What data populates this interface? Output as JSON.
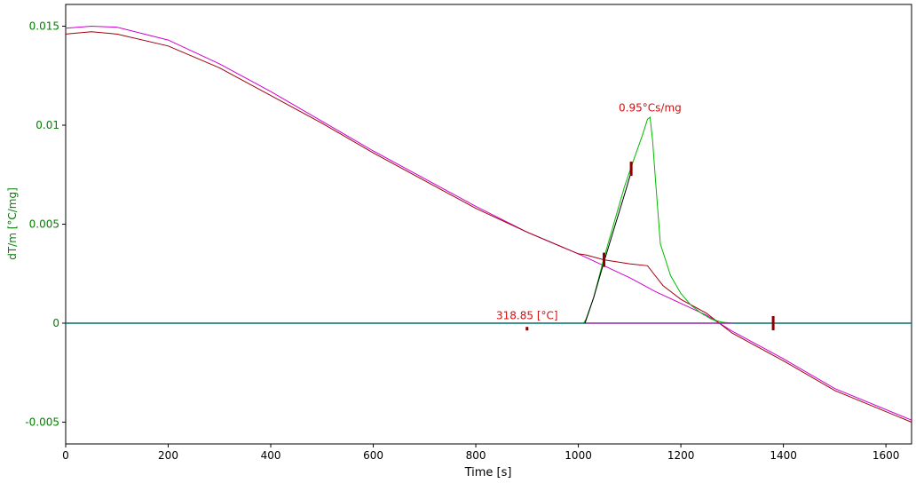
{
  "chart_data": {
    "type": "line",
    "xlabel": "Time [s]",
    "ylabel": "dT/m  [°C/mg]",
    "xlim": [
      0,
      1650
    ],
    "ylim": [
      -0.0061,
      0.0161
    ],
    "x_ticks": [
      0,
      200,
      400,
      600,
      800,
      1000,
      1200,
      1400,
      1600
    ],
    "x_tick_labels": [
      "0",
      "200",
      "400",
      "600",
      "800",
      "1000",
      "1200",
      "1400",
      "1600"
    ],
    "y_ticks": [
      0.015,
      0.01,
      0.005,
      0,
      -0.005
    ],
    "y_tick_labels": [
      "0.015",
      "0.01",
      "0.005",
      "0",
      "-0.005"
    ],
    "grid": false,
    "colors": {
      "green": "#00bb00",
      "dark_red": "#a00010",
      "magenta": "#d000d0",
      "teal": "#007070",
      "black": "#000000",
      "annotation": "#d01010",
      "marker": "#8b0000"
    },
    "series": [
      {
        "color": "#d000d0",
        "points": [
          [
            0,
            0.0149
          ],
          [
            50,
            0.015
          ],
          [
            100,
            0.01495
          ],
          [
            200,
            0.0143
          ],
          [
            300,
            0.0131
          ],
          [
            400,
            0.0117
          ],
          [
            500,
            0.0102
          ],
          [
            600,
            0.0087
          ],
          [
            700,
            0.0073
          ],
          [
            800,
            0.0059
          ],
          [
            900,
            0.0046
          ],
          [
            1000,
            0.0035
          ],
          [
            1050,
            0.0029
          ],
          [
            1100,
            0.0023
          ],
          [
            1150,
            0.0016
          ],
          [
            1200,
            0.001
          ],
          [
            1250,
            0.0004
          ],
          [
            1300,
            -0.0004
          ],
          [
            1400,
            -0.0018
          ],
          [
            1500,
            -0.0033
          ],
          [
            1650,
            -0.0049
          ]
        ]
      },
      {
        "color": "#a00010",
        "points": [
          [
            0,
            0.0146
          ],
          [
            50,
            0.01472
          ],
          [
            100,
            0.0146
          ],
          [
            200,
            0.014
          ],
          [
            300,
            0.0129
          ],
          [
            400,
            0.0115
          ],
          [
            500,
            0.0101
          ],
          [
            600,
            0.0086
          ],
          [
            700,
            0.0072
          ],
          [
            800,
            0.0058
          ],
          [
            900,
            0.0046
          ],
          [
            1000,
            0.0035
          ],
          [
            1015,
            0.00345
          ],
          [
            1050,
            0.0032
          ],
          [
            1100,
            0.003
          ],
          [
            1135,
            0.0029
          ],
          [
            1150,
            0.0024
          ],
          [
            1165,
            0.0019
          ],
          [
            1200,
            0.0012
          ],
          [
            1250,
            0.0005
          ],
          [
            1300,
            -0.0005
          ],
          [
            1400,
            -0.0019
          ],
          [
            1500,
            -0.0034
          ],
          [
            1650,
            -0.005
          ]
        ]
      },
      {
        "color": "#00bb00",
        "points": [
          [
            0,
            0
          ],
          [
            1010,
            0
          ],
          [
            1015,
            0.0002
          ],
          [
            1030,
            0.0013
          ],
          [
            1050,
            0.0033
          ],
          [
            1070,
            0.0051
          ],
          [
            1090,
            0.0069
          ],
          [
            1110,
            0.0084
          ],
          [
            1125,
            0.0095
          ],
          [
            1135,
            0.0103
          ],
          [
            1140,
            0.0104
          ],
          [
            1145,
            0.0092
          ],
          [
            1150,
            0.0074
          ],
          [
            1160,
            0.004
          ],
          [
            1170,
            0.0032
          ],
          [
            1180,
            0.0024
          ],
          [
            1200,
            0.0015
          ],
          [
            1220,
            0.0009
          ],
          [
            1240,
            0.0005
          ],
          [
            1260,
            0.0002
          ],
          [
            1280,
            5e-05
          ],
          [
            1300,
            0
          ],
          [
            1650,
            0
          ]
        ]
      },
      {
        "color": "#007070",
        "points": [
          [
            0,
            0
          ],
          [
            1650,
            0
          ]
        ]
      },
      {
        "color": "#000000",
        "points": [
          [
            1013,
            0
          ],
          [
            1030,
            0.0013
          ],
          [
            1050,
            0.0031
          ],
          [
            1070,
            0.0048
          ],
          [
            1090,
            0.0065
          ],
          [
            1105,
            0.0078
          ]
        ]
      },
      {
        "color": "#d000d0",
        "points": [
          [
            1015,
            0
          ],
          [
            1300,
            0
          ]
        ]
      }
    ],
    "markers": [
      {
        "x": 1050,
        "y": 0.0032
      },
      {
        "x": 1103,
        "y": 0.0078
      },
      {
        "x": 1380,
        "y": 0.0
      },
      {
        "x": 900,
        "y": -0.00028
      }
    ],
    "annotations": [
      {
        "text": "0.95°Cs/mg",
        "x": 1140,
        "y": 0.0107
      },
      {
        "text": "318.85 [°C]",
        "x": 900,
        "y": 0.0002
      }
    ]
  }
}
